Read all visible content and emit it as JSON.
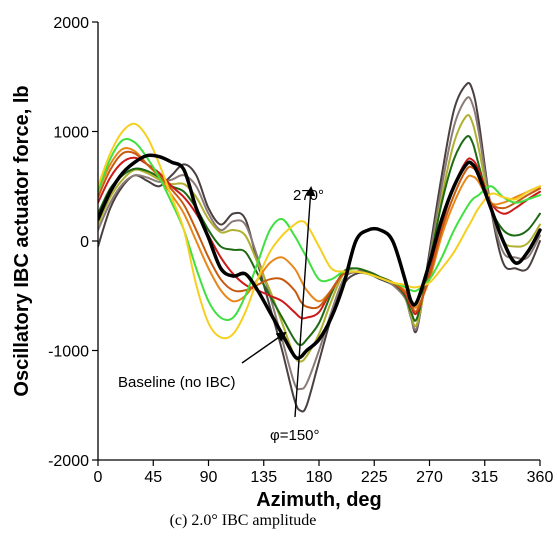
{
  "chart_data": {
    "type": "line",
    "xlabel": "Azimuth, deg",
    "ylabel": "Oscillatory IBC actuator force, lb",
    "caption": "(c)  2.0° IBC amplitude",
    "xlim": [
      0,
      360
    ],
    "ylim": [
      -2000,
      2000
    ],
    "xticks": [
      0,
      45,
      90,
      135,
      180,
      225,
      270,
      315,
      360
    ],
    "yticks": [
      -2000,
      -1000,
      0,
      1000,
      2000
    ],
    "grid": false,
    "annotations": {
      "baseline": "Baseline (no IBC)",
      "phase_start": "φ=150°",
      "phase_end": "270°"
    },
    "series": [
      {
        "color": "#000000",
        "width": 3.5,
        "x": [
          0,
          10,
          20,
          30,
          40,
          50,
          60,
          70,
          80,
          90,
          100,
          110,
          120,
          130,
          140,
          150,
          160,
          165,
          170,
          180,
          190,
          200,
          210,
          220,
          230,
          240,
          250,
          255,
          260,
          270,
          280,
          290,
          300,
          305,
          310,
          320,
          330,
          340,
          350,
          360
        ],
        "y": [
          200,
          450,
          620,
          720,
          780,
          770,
          720,
          650,
          300,
          30,
          -250,
          -320,
          -300,
          -450,
          -650,
          -850,
          -1050,
          -1060,
          -1000,
          -900,
          -700,
          -400,
          0,
          100,
          100,
          0,
          -350,
          -550,
          -550,
          -200,
          200,
          500,
          700,
          700,
          600,
          300,
          0,
          -200,
          -100,
          100
        ]
      },
      {
        "color": "#4a4040",
        "width": 2,
        "x": [
          0,
          10,
          20,
          30,
          40,
          50,
          60,
          70,
          80,
          90,
          100,
          110,
          120,
          130,
          140,
          150,
          160,
          165,
          170,
          180,
          190,
          200,
          210,
          220,
          230,
          240,
          250,
          255,
          260,
          270,
          280,
          290,
          300,
          305,
          310,
          320,
          330,
          340,
          350,
          360
        ],
        "y": [
          -50,
          300,
          500,
          600,
          550,
          500,
          600,
          700,
          600,
          300,
          150,
          250,
          200,
          -200,
          -600,
          -1000,
          -1450,
          -1550,
          -1500,
          -1100,
          -700,
          -400,
          -300,
          -300,
          -350,
          -400,
          -500,
          -700,
          -800,
          -100,
          600,
          1200,
          1430,
          1380,
          1100,
          300,
          -200,
          -250,
          -250,
          0
        ]
      },
      {
        "color": "#8a7a78",
        "width": 2,
        "x": [
          0,
          10,
          20,
          30,
          40,
          50,
          60,
          70,
          80,
          90,
          100,
          110,
          120,
          130,
          140,
          150,
          160,
          165,
          170,
          180,
          190,
          200,
          210,
          220,
          230,
          240,
          250,
          255,
          260,
          270,
          280,
          290,
          300,
          305,
          310,
          320,
          330,
          340,
          350,
          360
        ],
        "y": [
          100,
          350,
          520,
          600,
          580,
          540,
          560,
          600,
          500,
          250,
          100,
          180,
          150,
          -150,
          -500,
          -900,
          -1300,
          -1350,
          -1300,
          -1000,
          -650,
          -350,
          -280,
          -280,
          -330,
          -400,
          -520,
          -700,
          -780,
          -150,
          500,
          1050,
          1300,
          1250,
          1000,
          300,
          -100,
          -150,
          -150,
          50
        ]
      },
      {
        "color": "#b0b030",
        "width": 2,
        "x": [
          0,
          10,
          20,
          30,
          40,
          50,
          60,
          70,
          80,
          90,
          100,
          110,
          120,
          130,
          140,
          150,
          160,
          165,
          170,
          180,
          190,
          200,
          210,
          220,
          230,
          240,
          250,
          255,
          260,
          270,
          280,
          290,
          300,
          305,
          310,
          320,
          330,
          340,
          350,
          360
        ],
        "y": [
          150,
          400,
          560,
          650,
          620,
          560,
          520,
          520,
          400,
          200,
          80,
          100,
          50,
          -200,
          -450,
          -750,
          -1050,
          -1100,
          -1050,
          -850,
          -550,
          -300,
          -250,
          -280,
          -330,
          -380,
          -500,
          -680,
          -750,
          -200,
          400,
          900,
          1140,
          1080,
          850,
          300,
          0,
          -50,
          -20,
          150
        ]
      },
      {
        "color": "#1e6a14",
        "width": 2,
        "x": [
          0,
          10,
          20,
          30,
          40,
          50,
          60,
          70,
          80,
          90,
          100,
          110,
          120,
          130,
          140,
          150,
          160,
          165,
          170,
          180,
          190,
          200,
          210,
          220,
          230,
          240,
          250,
          255,
          260,
          270,
          280,
          290,
          300,
          305,
          310,
          320,
          330,
          340,
          350,
          360
        ],
        "y": [
          250,
          480,
          600,
          660,
          640,
          580,
          500,
          450,
          300,
          100,
          -50,
          -80,
          -100,
          -300,
          -500,
          -700,
          -900,
          -950,
          -900,
          -750,
          -480,
          -280,
          -250,
          -280,
          -330,
          -380,
          -500,
          -650,
          -700,
          -200,
          350,
          750,
          950,
          900,
          700,
          300,
          100,
          50,
          100,
          250
        ]
      },
      {
        "color": "#cc1a1a",
        "width": 2,
        "x": [
          0,
          10,
          20,
          30,
          40,
          50,
          60,
          70,
          80,
          90,
          100,
          110,
          120,
          130,
          140,
          150,
          160,
          165,
          170,
          180,
          190,
          200,
          210,
          220,
          230,
          240,
          250,
          255,
          260,
          270,
          280,
          290,
          300,
          305,
          310,
          320,
          330,
          340,
          350,
          360
        ],
        "y": [
          350,
          580,
          720,
          760,
          700,
          620,
          500,
          400,
          250,
          50,
          -150,
          -300,
          -400,
          -450,
          -500,
          -550,
          -650,
          -700,
          -700,
          -650,
          -450,
          -300,
          -280,
          -300,
          -340,
          -380,
          -480,
          -600,
          -650,
          -300,
          150,
          500,
          730,
          740,
          650,
          350,
          250,
          300,
          380,
          450
        ]
      },
      {
        "color": "#e8881a",
        "width": 2,
        "x": [
          0,
          10,
          20,
          30,
          40,
          50,
          60,
          70,
          80,
          90,
          100,
          110,
          120,
          130,
          140,
          150,
          160,
          165,
          170,
          180,
          190,
          200,
          210,
          220,
          230,
          240,
          250,
          255,
          260,
          270,
          280,
          290,
          300,
          305,
          310,
          320,
          330,
          340,
          350,
          360
        ],
        "y": [
          450,
          700,
          840,
          820,
          700,
          580,
          420,
          250,
          0,
          -250,
          -450,
          -550,
          -500,
          -350,
          -200,
          -150,
          -250,
          -350,
          -450,
          -550,
          -450,
          -300,
          -280,
          -300,
          -340,
          -380,
          -450,
          -550,
          -600,
          -350,
          50,
          350,
          570,
          590,
          540,
          350,
          350,
          400,
          450,
          500
        ]
      },
      {
        "color": "#c85a10",
        "width": 2,
        "x": [
          0,
          10,
          20,
          30,
          40,
          50,
          60,
          70,
          80,
          90,
          100,
          110,
          120,
          130,
          140,
          150,
          160,
          165,
          170,
          180,
          190,
          200,
          210,
          220,
          230,
          240,
          250,
          255,
          260,
          270,
          280,
          290,
          300,
          305,
          310,
          320,
          330,
          340,
          350,
          360
        ],
        "y": [
          400,
          650,
          800,
          800,
          700,
          600,
          470,
          330,
          100,
          -150,
          -350,
          -450,
          -450,
          -400,
          -350,
          -350,
          -450,
          -550,
          -600,
          -600,
          -450,
          -300,
          -280,
          -300,
          -340,
          -380,
          -470,
          -580,
          -630,
          -320,
          100,
          420,
          650,
          670,
          600,
          350,
          300,
          350,
          420,
          480
        ]
      },
      {
        "color": "#40e040",
        "width": 2,
        "x": [
          0,
          10,
          20,
          30,
          40,
          50,
          60,
          70,
          80,
          90,
          100,
          110,
          120,
          130,
          140,
          150,
          160,
          165,
          170,
          180,
          190,
          200,
          210,
          220,
          230,
          240,
          250,
          255,
          260,
          270,
          280,
          290,
          300,
          305,
          310,
          320,
          330,
          340,
          350,
          360
        ],
        "y": [
          450,
          750,
          920,
          900,
          760,
          580,
          350,
          100,
          -250,
          -550,
          -700,
          -700,
          -500,
          -200,
          100,
          200,
          50,
          -50,
          -150,
          -350,
          -350,
          -280,
          -280,
          -300,
          -340,
          -380,
          -420,
          -450,
          -450,
          -350,
          -150,
          100,
          300,
          380,
          420,
          500,
          400,
          350,
          380,
          420
        ]
      },
      {
        "color": "#f5d020",
        "width": 2,
        "x": [
          0,
          10,
          20,
          30,
          40,
          50,
          60,
          70,
          80,
          90,
          100,
          110,
          120,
          130,
          140,
          150,
          160,
          165,
          170,
          180,
          190,
          200,
          210,
          220,
          230,
          240,
          250,
          255,
          260,
          270,
          280,
          290,
          300,
          305,
          310,
          320,
          330,
          340,
          350,
          360
        ],
        "y": [
          500,
          800,
          1000,
          1070,
          950,
          700,
          400,
          100,
          -400,
          -750,
          -880,
          -850,
          -650,
          -350,
          -100,
          50,
          150,
          180,
          150,
          -50,
          -250,
          -280,
          -280,
          -300,
          -340,
          -380,
          -400,
          -420,
          -420,
          -380,
          -250,
          -100,
          100,
          200,
          300,
          430,
          400,
          380,
          450,
          500
        ]
      }
    ]
  }
}
